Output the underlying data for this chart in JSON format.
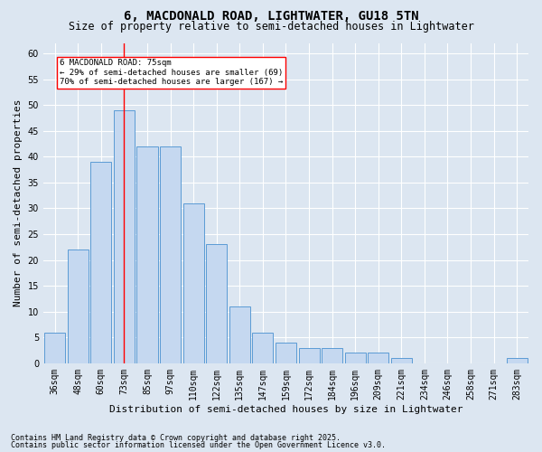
{
  "title": "6, MACDONALD ROAD, LIGHTWATER, GU18 5TN",
  "subtitle": "Size of property relative to semi-detached houses in Lightwater",
  "xlabel": "Distribution of semi-detached houses by size in Lightwater",
  "ylabel": "Number of semi-detached properties",
  "categories": [
    "36sqm",
    "48sqm",
    "60sqm",
    "73sqm",
    "85sqm",
    "97sqm",
    "110sqm",
    "122sqm",
    "135sqm",
    "147sqm",
    "159sqm",
    "172sqm",
    "184sqm",
    "196sqm",
    "209sqm",
    "221sqm",
    "234sqm",
    "246sqm",
    "258sqm",
    "271sqm",
    "283sqm"
  ],
  "values": [
    6,
    22,
    39,
    49,
    42,
    42,
    31,
    23,
    11,
    6,
    4,
    3,
    3,
    2,
    2,
    1,
    0,
    0,
    0,
    0,
    1
  ],
  "bar_color": "#c5d8f0",
  "bar_edge_color": "#5b9bd5",
  "red_line_x": 3,
  "annotation_title": "6 MACDONALD ROAD: 75sqm",
  "annotation_line1": "← 29% of semi-detached houses are smaller (69)",
  "annotation_line2": "70% of semi-detached houses are larger (167) →",
  "ylim": [
    0,
    62
  ],
  "yticks": [
    0,
    5,
    10,
    15,
    20,
    25,
    30,
    35,
    40,
    45,
    50,
    55,
    60
  ],
  "footnote1": "Contains HM Land Registry data © Crown copyright and database right 2025.",
  "footnote2": "Contains public sector information licensed under the Open Government Licence v3.0.",
  "bg_color": "#dce6f1",
  "plot_bg_color": "#dce6f1",
  "grid_color": "#ffffff",
  "title_fontsize": 10,
  "subtitle_fontsize": 8.5,
  "axis_label_fontsize": 8,
  "tick_fontsize": 7,
  "annotation_fontsize": 6.5,
  "footnote_fontsize": 6
}
